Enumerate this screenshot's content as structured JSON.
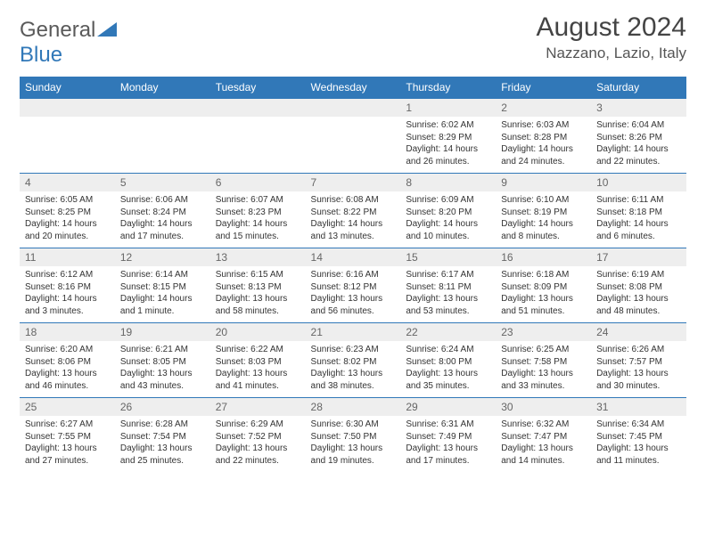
{
  "logo": {
    "part1": "General",
    "part2": "Blue"
  },
  "header": {
    "month": "August 2024",
    "location": "Nazzano, Lazio, Italy"
  },
  "style": {
    "header_bg": "#3178b8",
    "header_text": "#ffffff",
    "daynum_bg": "#eeeeee",
    "row_border": "#3178b8",
    "body_text": "#333333"
  },
  "calendar": {
    "type": "table",
    "columns": [
      "Sunday",
      "Monday",
      "Tuesday",
      "Wednesday",
      "Thursday",
      "Friday",
      "Saturday"
    ],
    "weeks": [
      [
        null,
        null,
        null,
        null,
        {
          "n": "1",
          "sr": "6:02 AM",
          "ss": "8:29 PM",
          "dl": "14 hours and 26 minutes."
        },
        {
          "n": "2",
          "sr": "6:03 AM",
          "ss": "8:28 PM",
          "dl": "14 hours and 24 minutes."
        },
        {
          "n": "3",
          "sr": "6:04 AM",
          "ss": "8:26 PM",
          "dl": "14 hours and 22 minutes."
        }
      ],
      [
        {
          "n": "4",
          "sr": "6:05 AM",
          "ss": "8:25 PM",
          "dl": "14 hours and 20 minutes."
        },
        {
          "n": "5",
          "sr": "6:06 AM",
          "ss": "8:24 PM",
          "dl": "14 hours and 17 minutes."
        },
        {
          "n": "6",
          "sr": "6:07 AM",
          "ss": "8:23 PM",
          "dl": "14 hours and 15 minutes."
        },
        {
          "n": "7",
          "sr": "6:08 AM",
          "ss": "8:22 PM",
          "dl": "14 hours and 13 minutes."
        },
        {
          "n": "8",
          "sr": "6:09 AM",
          "ss": "8:20 PM",
          "dl": "14 hours and 10 minutes."
        },
        {
          "n": "9",
          "sr": "6:10 AM",
          "ss": "8:19 PM",
          "dl": "14 hours and 8 minutes."
        },
        {
          "n": "10",
          "sr": "6:11 AM",
          "ss": "8:18 PM",
          "dl": "14 hours and 6 minutes."
        }
      ],
      [
        {
          "n": "11",
          "sr": "6:12 AM",
          "ss": "8:16 PM",
          "dl": "14 hours and 3 minutes."
        },
        {
          "n": "12",
          "sr": "6:14 AM",
          "ss": "8:15 PM",
          "dl": "14 hours and 1 minute."
        },
        {
          "n": "13",
          "sr": "6:15 AM",
          "ss": "8:13 PM",
          "dl": "13 hours and 58 minutes."
        },
        {
          "n": "14",
          "sr": "6:16 AM",
          "ss": "8:12 PM",
          "dl": "13 hours and 56 minutes."
        },
        {
          "n": "15",
          "sr": "6:17 AM",
          "ss": "8:11 PM",
          "dl": "13 hours and 53 minutes."
        },
        {
          "n": "16",
          "sr": "6:18 AM",
          "ss": "8:09 PM",
          "dl": "13 hours and 51 minutes."
        },
        {
          "n": "17",
          "sr": "6:19 AM",
          "ss": "8:08 PM",
          "dl": "13 hours and 48 minutes."
        }
      ],
      [
        {
          "n": "18",
          "sr": "6:20 AM",
          "ss": "8:06 PM",
          "dl": "13 hours and 46 minutes."
        },
        {
          "n": "19",
          "sr": "6:21 AM",
          "ss": "8:05 PM",
          "dl": "13 hours and 43 minutes."
        },
        {
          "n": "20",
          "sr": "6:22 AM",
          "ss": "8:03 PM",
          "dl": "13 hours and 41 minutes."
        },
        {
          "n": "21",
          "sr": "6:23 AM",
          "ss": "8:02 PM",
          "dl": "13 hours and 38 minutes."
        },
        {
          "n": "22",
          "sr": "6:24 AM",
          "ss": "8:00 PM",
          "dl": "13 hours and 35 minutes."
        },
        {
          "n": "23",
          "sr": "6:25 AM",
          "ss": "7:58 PM",
          "dl": "13 hours and 33 minutes."
        },
        {
          "n": "24",
          "sr": "6:26 AM",
          "ss": "7:57 PM",
          "dl": "13 hours and 30 minutes."
        }
      ],
      [
        {
          "n": "25",
          "sr": "6:27 AM",
          "ss": "7:55 PM",
          "dl": "13 hours and 27 minutes."
        },
        {
          "n": "26",
          "sr": "6:28 AM",
          "ss": "7:54 PM",
          "dl": "13 hours and 25 minutes."
        },
        {
          "n": "27",
          "sr": "6:29 AM",
          "ss": "7:52 PM",
          "dl": "13 hours and 22 minutes."
        },
        {
          "n": "28",
          "sr": "6:30 AM",
          "ss": "7:50 PM",
          "dl": "13 hours and 19 minutes."
        },
        {
          "n": "29",
          "sr": "6:31 AM",
          "ss": "7:49 PM",
          "dl": "13 hours and 17 minutes."
        },
        {
          "n": "30",
          "sr": "6:32 AM",
          "ss": "7:47 PM",
          "dl": "13 hours and 14 minutes."
        },
        {
          "n": "31",
          "sr": "6:34 AM",
          "ss": "7:45 PM",
          "dl": "13 hours and 11 minutes."
        }
      ]
    ]
  },
  "labels": {
    "sunrise": "Sunrise:",
    "sunset": "Sunset:",
    "daylight": "Daylight:"
  }
}
